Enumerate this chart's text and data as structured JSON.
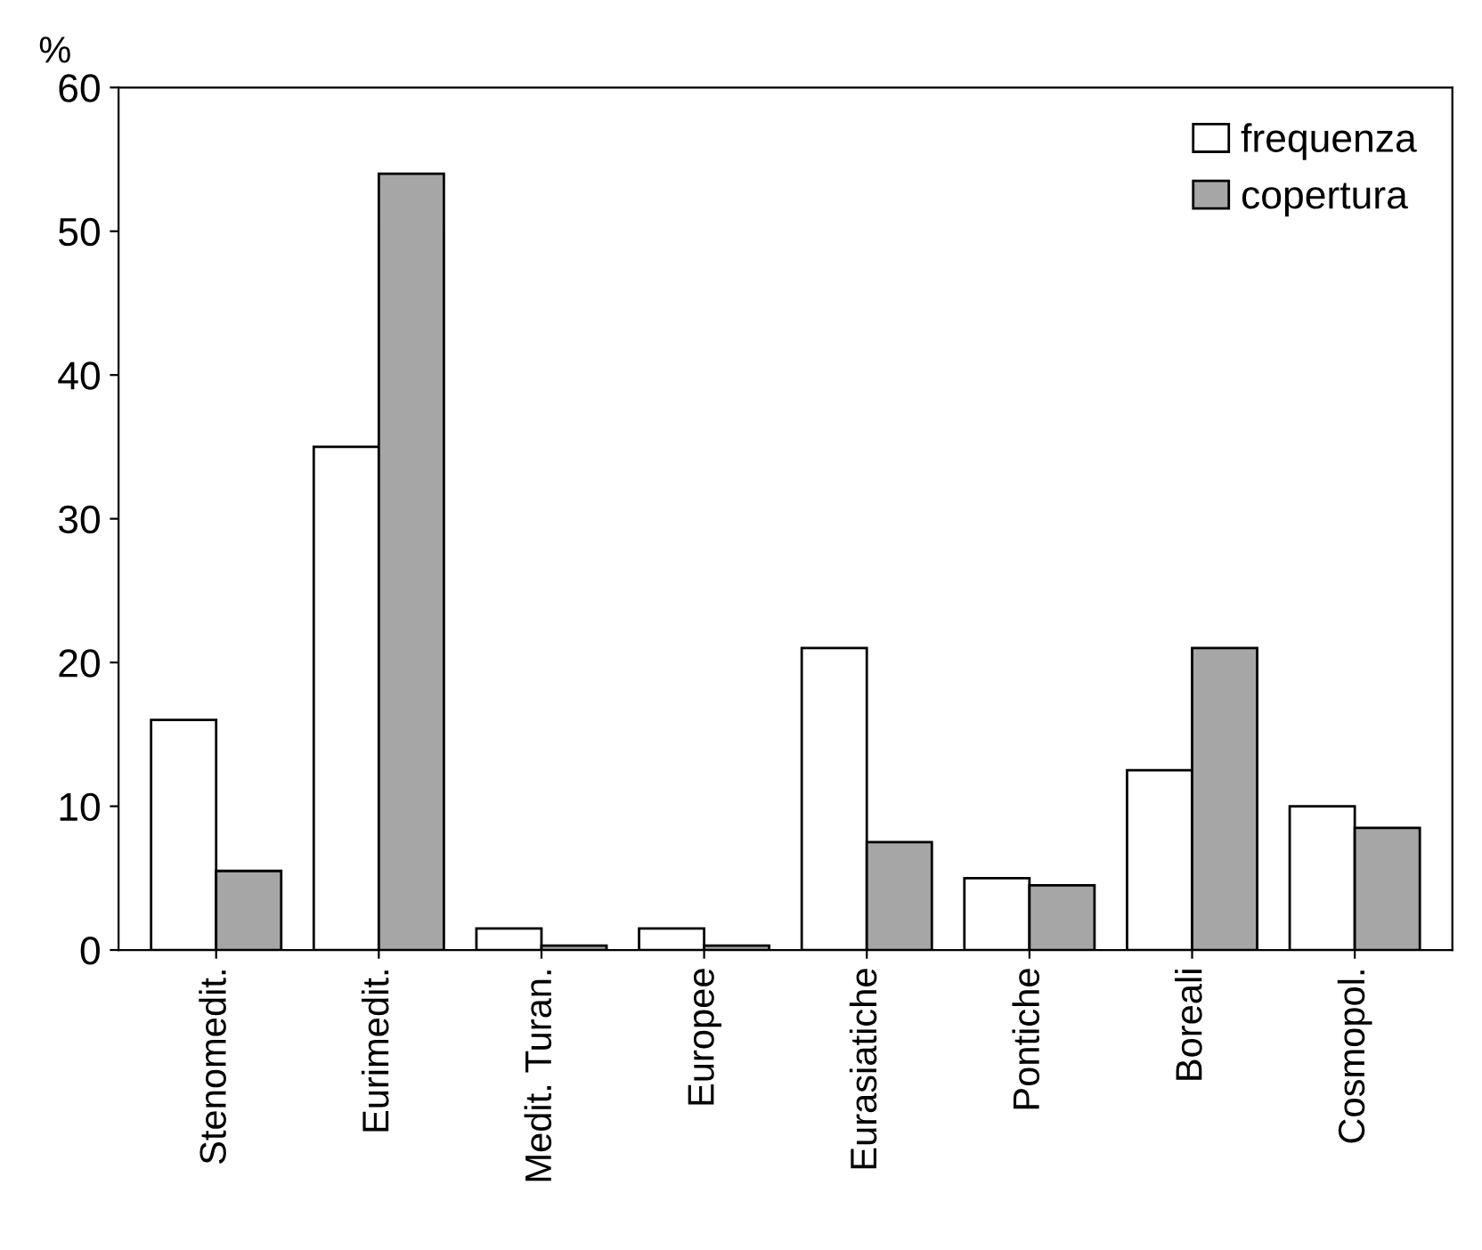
{
  "chart_data": {
    "type": "bar",
    "ylabel": "%",
    "categories": [
      "Stenomedit.",
      "Eurimedit.",
      "Medit. Turan.",
      "Europee",
      "Eurasiatiche",
      "Pontiche",
      "Boreali",
      "Cosmopol."
    ],
    "series": [
      {
        "name": "frequenza",
        "color": "#ffffff",
        "values": [
          16,
          35,
          1.5,
          1.5,
          21,
          5,
          12.5,
          10
        ]
      },
      {
        "name": "copertura",
        "color": "#a6a6a6",
        "values": [
          5.5,
          54,
          0.3,
          0.3,
          7.5,
          4.5,
          21,
          8.5
        ]
      }
    ],
    "ylim": [
      0,
      60
    ],
    "yticks": [
      0,
      10,
      20,
      30,
      40,
      50,
      60
    ],
    "grid": false,
    "legend": "top right"
  }
}
